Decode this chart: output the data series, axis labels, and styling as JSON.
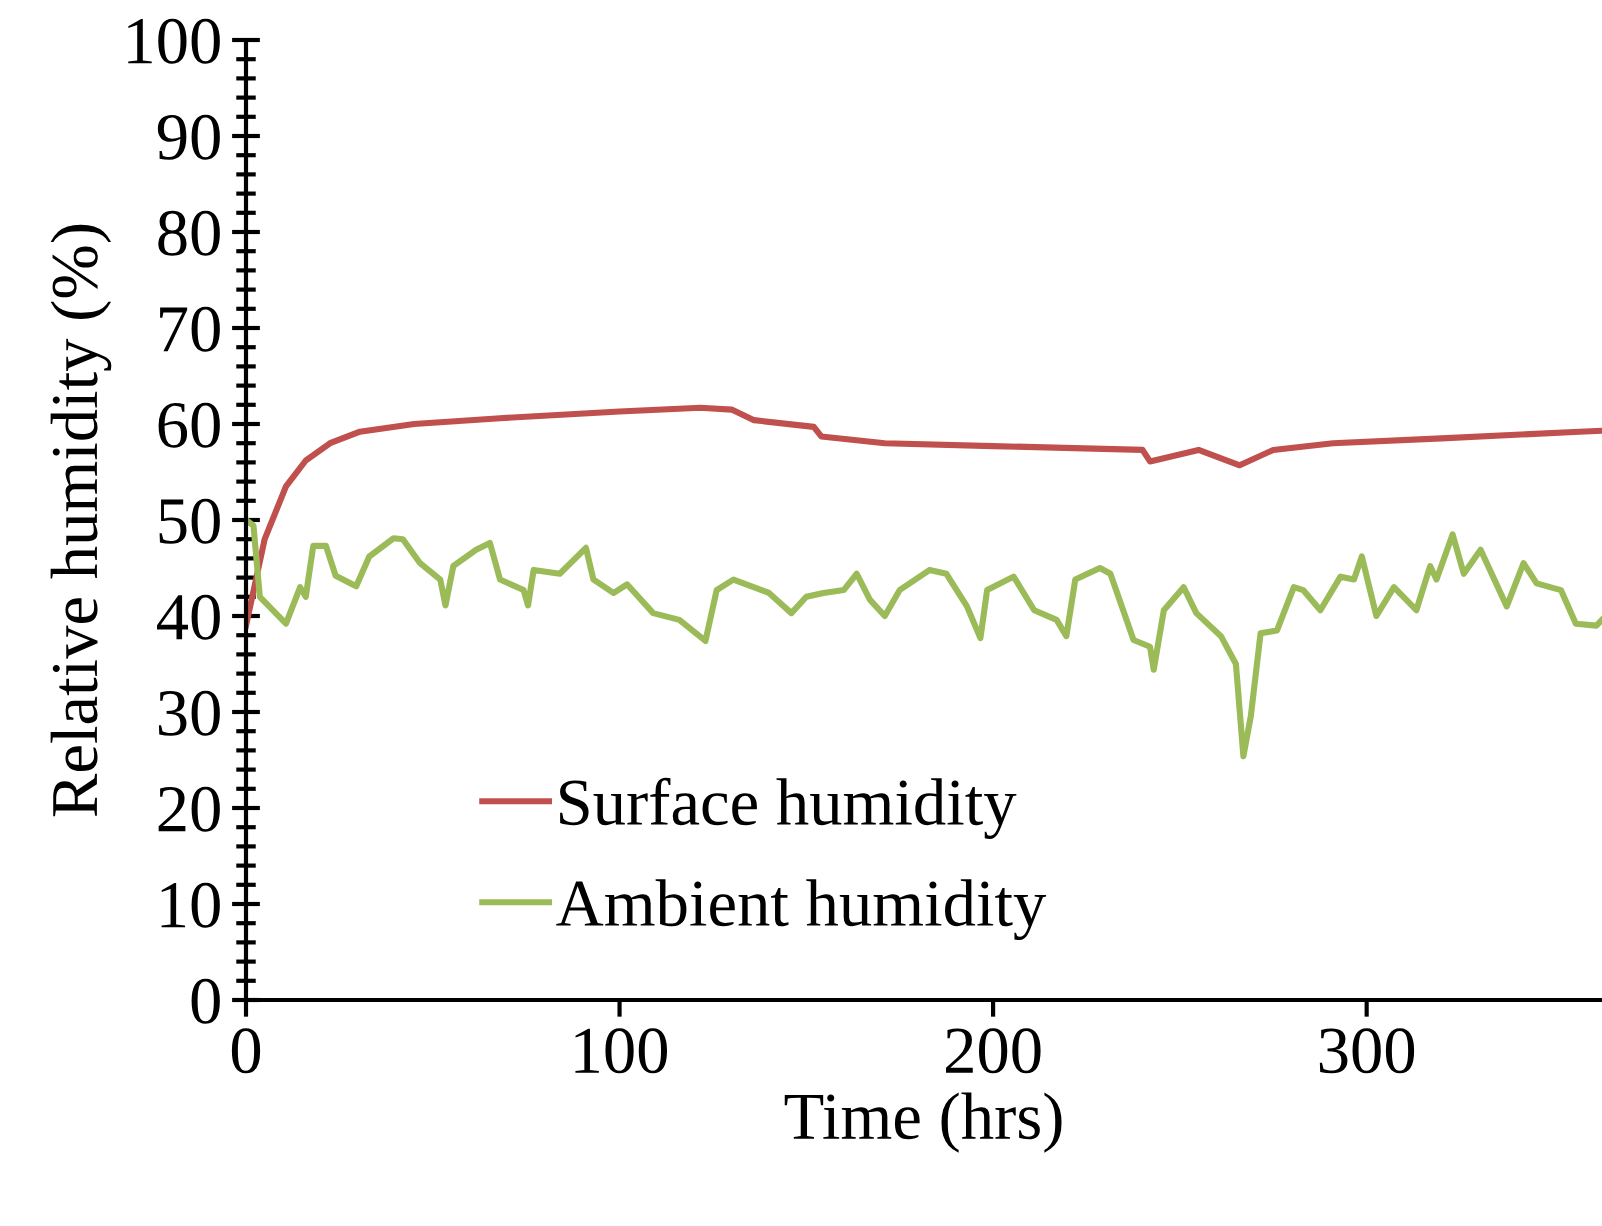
{
  "chart_data": {
    "type": "line",
    "xlabel": "Time (hrs)",
    "ylabel": "Relative humidity (%)",
    "xlim": [
      0,
      363
    ],
    "xticks": [
      0,
      100,
      200,
      300
    ],
    "ylim": [
      0,
      100
    ],
    "yticks": [
      0,
      10,
      20,
      30,
      40,
      50,
      60,
      70,
      80,
      90,
      100
    ],
    "grid": false,
    "legend": "bottom left",
    "marker": "none",
    "line_style": "solid",
    "series": [
      {
        "name": "Surface humidity",
        "color": "#c0504d",
        "x": [
          0,
          5,
          10.7,
          16,
          22.5,
          30.5,
          45,
          68,
          100,
          121.6,
          130,
          136,
          152,
          154,
          171,
          200,
          240,
          242,
          255,
          266,
          275,
          291,
          320,
          357,
          363
        ],
        "values": [
          39,
          48,
          53.5,
          56.2,
          58,
          59.2,
          60,
          60.6,
          61.3,
          61.7,
          61.5,
          60.4,
          59.7,
          58.7,
          58,
          57.7,
          57.3,
          56.1,
          57.3,
          55.7,
          57.3,
          58,
          58.5,
          59.2,
          59.3
        ]
      },
      {
        "name": "Ambient humidity",
        "color": "#9bbb59",
        "x": [
          0,
          2,
          3.7,
          10.7,
          14.5,
          16,
          18,
          21.4,
          24,
          29.5,
          33,
          39.5,
          42,
          46.6,
          52,
          53.4,
          55.5,
          61.6,
          65.3,
          68,
          74.3,
          75.5,
          77,
          84,
          91,
          93,
          98.4,
          102,
          109,
          116,
          123,
          126,
          130.5,
          140,
          146,
          150,
          154.6,
          160,
          163.5,
          167,
          171,
          175,
          183,
          187.5,
          193,
          196.6,
          198.4,
          205.5,
          211,
          217,
          219.6,
          222,
          228.6,
          231.4,
          237.6,
          242,
          243,
          245.7,
          251,
          254.4,
          261,
          265,
          267,
          269,
          271.6,
          276,
          280.5,
          283,
          287.6,
          293,
          296.6,
          298.7,
          302.6,
          307.3,
          313.3,
          317,
          318.7,
          323,
          326,
          330.5,
          337.5,
          342,
          345.5,
          352,
          356,
          361.5,
          363
        ],
        "values": [
          50,
          49.4,
          42,
          39.2,
          43,
          42,
          47.3,
          47.3,
          44.2,
          43.1,
          46.2,
          48.1,
          48,
          45.5,
          43.8,
          41.1,
          45.2,
          46.9,
          47.6,
          43.8,
          42.7,
          41.1,
          44.8,
          44.4,
          47.1,
          43.8,
          42.4,
          43.3,
          40.3,
          39.6,
          37.4,
          42.7,
          43.8,
          42.4,
          40.3,
          42,
          42.4,
          42.7,
          44.4,
          41.7,
          40,
          42.7,
          44.8,
          44.4,
          41,
          37.7,
          42.7,
          44.1,
          40.6,
          39.6,
          37.9,
          43.8,
          45,
          44.4,
          37.5,
          36.8,
          34.4,
          40.6,
          43,
          40.3,
          37.9,
          35,
          25.4,
          29.6,
          38.2,
          38.5,
          43,
          42.7,
          40.6,
          44.1,
          43.8,
          46.2,
          40,
          43,
          40.6,
          45.2,
          43.8,
          48.5,
          44.4,
          46.9,
          41,
          45.5,
          43.4,
          42.7,
          39.2,
          39,
          39.6
        ]
      }
    ]
  }
}
